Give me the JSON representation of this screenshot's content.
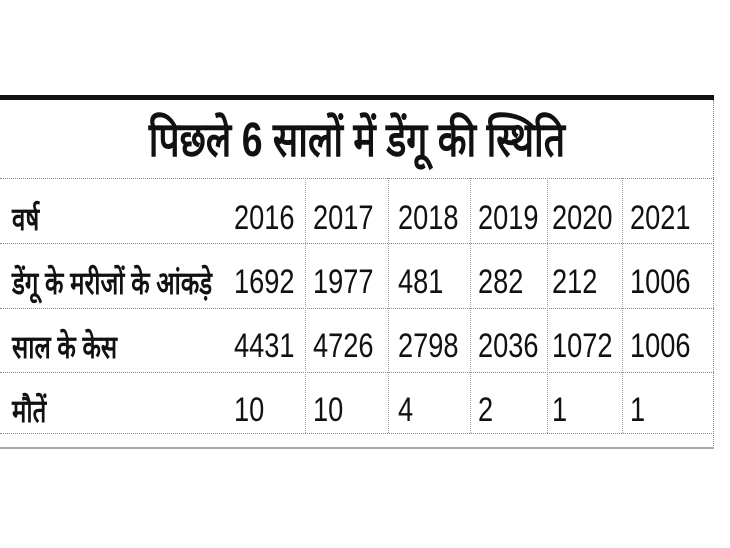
{
  "chart_data": {
    "type": "table",
    "title": "पिछले 6 सालों में डेंगू की स्थिति",
    "header_label": "वर्ष",
    "columns": [
      "2016",
      "2017",
      "2018",
      "2019",
      "2020",
      "2021"
    ],
    "rows": [
      {
        "label": "डेंगू के मरीजों के आंकड़े",
        "values": [
          "1692",
          "1977",
          "481",
          "282",
          "212",
          "1006"
        ]
      },
      {
        "label": "साल के केस",
        "values": [
          "4431",
          "4726",
          "2798",
          "2036",
          "1072",
          "1006"
        ]
      },
      {
        "label": "मौतें",
        "values": [
          "10",
          "10",
          "4",
          "2",
          "1",
          "1"
        ]
      }
    ]
  }
}
